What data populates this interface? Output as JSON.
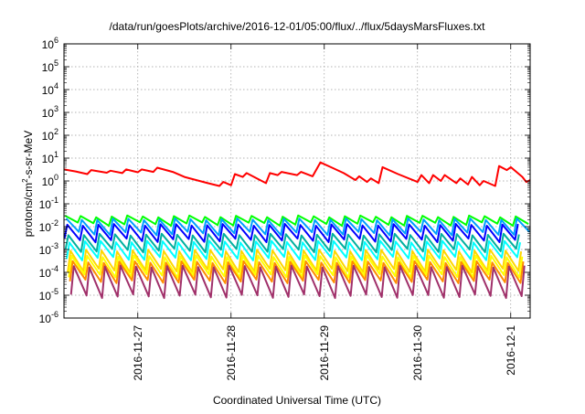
{
  "chart_data": {
    "type": "line",
    "title": "/data/run/goesPlots/archive/2016-12-01/05:00/flux/../flux/5daysMarsFluxes.txt",
    "xlabel": "Coordinated Universal Time (UTC)",
    "ylabel": {
      "prefix": "protons/cm",
      "superscript": "2",
      "suffix": "-s-sr-MeV"
    },
    "yscale": "log",
    "ylim": [
      1e-06,
      1000000.0
    ],
    "y_ticks": [
      {
        "mantissa": "10",
        "exponent": "-6",
        "value": 1e-06
      },
      {
        "mantissa": "10",
        "exponent": "-5",
        "value": 1e-05
      },
      {
        "mantissa": "10",
        "exponent": "-4",
        "value": 0.0001
      },
      {
        "mantissa": "10",
        "exponent": "-3",
        "value": 0.001
      },
      {
        "mantissa": "10",
        "exponent": "-2",
        "value": 0.01
      },
      {
        "mantissa": "10",
        "exponent": "-1",
        "value": 0.1
      },
      {
        "mantissa": "10",
        "exponent": "0",
        "value": 1
      },
      {
        "mantissa": "10",
        "exponent": "1",
        "value": 10
      },
      {
        "mantissa": "10",
        "exponent": "2",
        "value": 100
      },
      {
        "mantissa": "10",
        "exponent": "3",
        "value": 1000
      },
      {
        "mantissa": "10",
        "exponent": "4",
        "value": 10000
      },
      {
        "mantissa": "10",
        "exponent": "5",
        "value": 100000
      },
      {
        "mantissa": "10",
        "exponent": "6",
        "value": 1000000
      }
    ],
    "xlim": [
      "2016-11-26 05:00",
      "2016-12-01 05:00"
    ],
    "x_ticks": [
      {
        "label": "2016-11-27",
        "value": "2016-11-27 00:00"
      },
      {
        "label": "2016-11-28",
        "value": "2016-11-28 00:00"
      },
      {
        "label": "2016-11-29",
        "value": "2016-11-29 00:00"
      },
      {
        "label": "2016-11-30",
        "value": "2016-11-30 00:00"
      },
      {
        "label": "2016-12-1",
        "value": "2016-12-01 00:00"
      }
    ],
    "grid": true,
    "series": [
      {
        "color": "#ff0000",
        "points": [
          [
            "2016-11-26 05:00",
            3.2
          ],
          [
            "2016-11-26 08:00",
            2.6
          ],
          [
            "2016-11-26 11:00",
            2.0
          ],
          [
            "2016-11-26 12:00",
            3.0
          ],
          [
            "2016-11-26 16:00",
            2.3
          ],
          [
            "2016-11-26 17:00",
            2.8
          ],
          [
            "2016-11-26 20:00",
            2.2
          ],
          [
            "2016-11-26 21:00",
            3.2
          ],
          [
            "2016-11-27 00:00",
            2.4
          ],
          [
            "2016-11-27 01:00",
            3.2
          ],
          [
            "2016-11-27 04:00",
            2.5
          ],
          [
            "2016-11-27 05:00",
            3.8
          ],
          [
            "2016-11-27 09:00",
            2.5
          ],
          [
            "2016-11-27 12:00",
            1.5
          ],
          [
            "2016-11-27 15:00",
            1.1
          ],
          [
            "2016-11-27 18:00",
            0.8
          ],
          [
            "2016-11-27 21:00",
            0.6
          ],
          [
            "2016-11-27 22:00",
            0.9
          ],
          [
            "2016-11-28 00:00",
            0.65
          ],
          [
            "2016-11-28 01:00",
            2.0
          ],
          [
            "2016-11-28 03:00",
            1.5
          ],
          [
            "2016-11-28 04:00",
            2.2
          ],
          [
            "2016-11-28 07:00",
            1.2
          ],
          [
            "2016-11-28 09:00",
            0.8
          ],
          [
            "2016-11-28 10:00",
            2.2
          ],
          [
            "2016-11-28 12:00",
            1.8
          ],
          [
            "2016-11-28 13:00",
            2.5
          ],
          [
            "2016-11-28 17:00",
            1.8
          ],
          [
            "2016-11-28 18:00",
            2.5
          ],
          [
            "2016-11-28 21:00",
            1.6
          ],
          [
            "2016-11-28 23:00",
            6.5
          ],
          [
            "2016-11-29 02:00",
            3.8
          ],
          [
            "2016-11-29 05:00",
            2.2
          ],
          [
            "2016-11-29 08:00",
            1.1
          ],
          [
            "2016-11-29 09:00",
            1.6
          ],
          [
            "2016-11-29 11:00",
            0.9
          ],
          [
            "2016-11-29 12:00",
            1.3
          ],
          [
            "2016-11-29 14:00",
            0.8
          ],
          [
            "2016-11-29 15:00",
            4.0
          ],
          [
            "2016-11-29 19:00",
            2.0
          ],
          [
            "2016-11-30 00:00",
            0.9
          ],
          [
            "2016-11-30 01:00",
            1.8
          ],
          [
            "2016-11-30 03:00",
            0.8
          ],
          [
            "2016-11-30 04:00",
            1.8
          ],
          [
            "2016-11-30 06:00",
            1.0
          ],
          [
            "2016-11-30 07:00",
            1.8
          ],
          [
            "2016-11-30 10:00",
            0.8
          ],
          [
            "2016-11-30 11:00",
            1.3
          ],
          [
            "2016-11-30 13:00",
            0.7
          ],
          [
            "2016-11-30 14:00",
            1.5
          ],
          [
            "2016-11-30 16:00",
            0.65
          ],
          [
            "2016-11-30 17:00",
            1.0
          ],
          [
            "2016-11-30 20:00",
            0.6
          ],
          [
            "2016-11-30 21:00",
            4.5
          ],
          [
            "2016-11-30 23:00",
            3.0
          ],
          [
            "2016-12-01 00:00",
            4.0
          ],
          [
            "2016-12-01 03:00",
            1.5
          ],
          [
            "2016-12-01 04:00",
            0.9
          ],
          [
            "2016-12-01 05:00",
            1.1
          ]
        ]
      },
      {
        "color": "#00ff00",
        "high": 0.028,
        "low": 0.013
      },
      {
        "color": "#00a0ff",
        "high": 0.021,
        "low": 0.005
      },
      {
        "color": "#0000ff",
        "high": 0.012,
        "low": 0.0025
      },
      {
        "color": "#00b0a0",
        "high": 0.0045,
        "low": 0.0009
      },
      {
        "color": "#00ffff",
        "high": 0.0022,
        "low": 0.0004
      },
      {
        "color": "#ffd700",
        "high": 0.0009,
        "low": 0.00012
      },
      {
        "color": "#ffff00",
        "high": 0.0005,
        "low": 7e-05
      },
      {
        "color": "#ff8c00",
        "high": 0.00028,
        "low": 4e-05
      },
      {
        "color": "#a0306a",
        "high": 0.00018,
        "low": 9e-06
      }
    ]
  }
}
